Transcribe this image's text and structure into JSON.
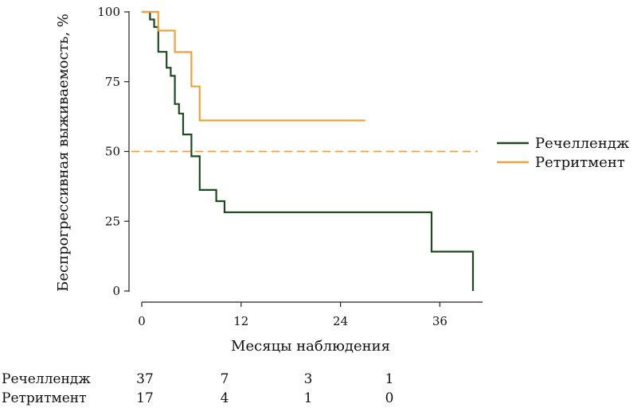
{
  "chart_data": {
    "type": "line",
    "subtype": "kaplan-meier-step",
    "xlabel": "Месяцы наблюдения",
    "ylabel": "Беспрогрессивная выживаемость, %",
    "xlim": [
      0,
      40
    ],
    "ylim": [
      0,
      100
    ],
    "x_ticks": [
      "0",
      "12",
      "24",
      "36"
    ],
    "y_ticks": [
      "0",
      "25",
      "50",
      "75",
      "100"
    ],
    "grid": false,
    "legend_position": "right",
    "reference_line": {
      "y": 50,
      "style": "dashed",
      "color": "#E8A33D"
    },
    "series": [
      {
        "name": "Речеллендж",
        "color": "#1E4A1F",
        "points": [
          [
            0,
            100
          ],
          [
            1,
            100
          ],
          [
            1,
            97.3
          ],
          [
            1.5,
            97.3
          ],
          [
            1.5,
            94.6
          ],
          [
            2,
            94.6
          ],
          [
            2,
            85.7
          ],
          [
            3,
            85.7
          ],
          [
            3,
            80
          ],
          [
            3.5,
            80
          ],
          [
            3.5,
            77.1
          ],
          [
            4,
            77.1
          ],
          [
            4,
            67
          ],
          [
            4.5,
            67
          ],
          [
            4.5,
            63.6
          ],
          [
            5,
            63.6
          ],
          [
            5,
            56.1
          ],
          [
            6,
            56.1
          ],
          [
            6,
            48.3
          ],
          [
            7,
            48.3
          ],
          [
            7,
            36.2
          ],
          [
            9,
            36.2
          ],
          [
            9,
            32.2
          ],
          [
            10,
            32.2
          ],
          [
            10,
            28.2
          ],
          [
            35,
            28.2
          ],
          [
            35,
            14.1
          ],
          [
            40,
            14.1
          ],
          [
            40,
            0
          ]
        ]
      },
      {
        "name": "Ретритмент",
        "color": "#E8A33D",
        "points": [
          [
            0,
            100
          ],
          [
            2,
            100
          ],
          [
            2,
            93.3
          ],
          [
            4,
            93.3
          ],
          [
            4,
            85.6
          ],
          [
            6,
            85.6
          ],
          [
            6,
            73.3
          ],
          [
            7,
            73.3
          ],
          [
            7,
            61.1
          ],
          [
            27,
            61.1
          ]
        ]
      }
    ],
    "risk_table": {
      "time_points": [
        0,
        12,
        24,
        36
      ],
      "rows": [
        {
          "name": "Речеллендж",
          "counts": [
            "37",
            "7",
            "3",
            "1"
          ]
        },
        {
          "name": "Ретритмент",
          "counts": [
            "17",
            "4",
            "1",
            "0"
          ]
        }
      ]
    }
  }
}
